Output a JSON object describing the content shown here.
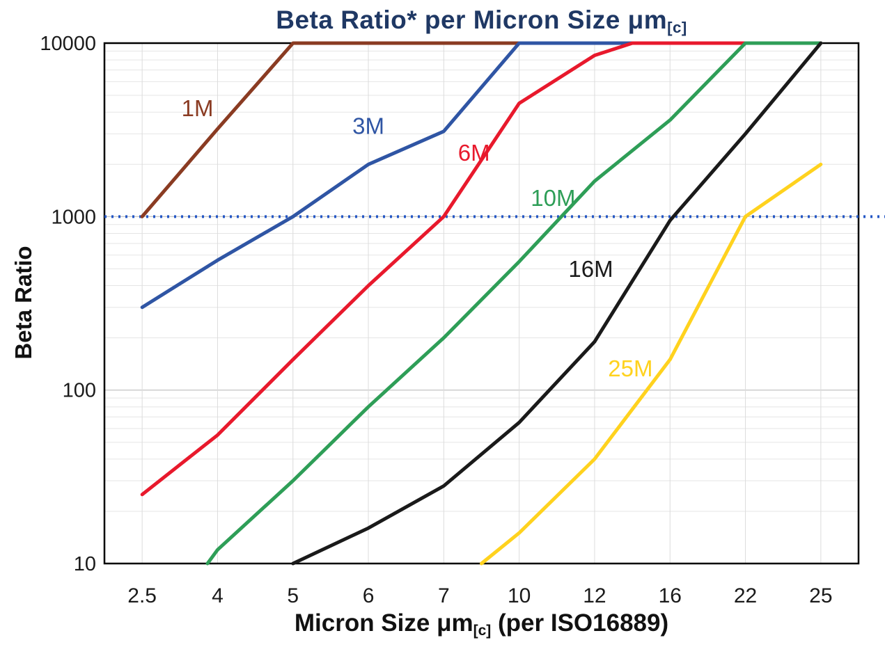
{
  "title": {
    "prefix": "Beta Ratio* per Micron Size μm",
    "sub": "[c]"
  },
  "ylabel": {
    "text": "Beta Ratio"
  },
  "xlabel": {
    "part1": "Micron Size μm",
    "sub": "[c]",
    "part2": " (per ISO16889)"
  },
  "colors": {
    "title_text": "#1f3864",
    "axis_text": "#1a1a1a",
    "reference_line": "#2457c5",
    "plot_border": "#000000",
    "grid_minor": "#e5e5e5",
    "grid_major": "#c9c9c9",
    "grid_vertical": "#dcdcdc"
  },
  "chart_data": {
    "type": "line",
    "title": "Beta Ratio* per Micron Size μm[c]",
    "xlabel": "Micron Size μm[c] (per ISO16889)",
    "ylabel": "Beta Ratio",
    "x_scale": "categorical",
    "y_scale": "log10",
    "ylim": [
      10,
      10000
    ],
    "y_ticks": [
      10,
      100,
      1000,
      10000
    ],
    "categories": [
      2.5,
      4,
      5,
      6,
      7,
      10,
      12,
      16,
      22,
      25
    ],
    "grid": true,
    "legend": "inline-labels",
    "reference_line": {
      "y": 1000,
      "style": "dotted",
      "color": "#2457c5"
    },
    "series": [
      {
        "name": "1M",
        "color": "#8a3b22",
        "points": [
          [
            2.5,
            1000
          ],
          [
            4,
            3200
          ],
          [
            5,
            10000
          ],
          [
            10,
            10000
          ]
        ],
        "label_pos": {
          "x": 3.6,
          "y": 3800
        }
      },
      {
        "name": "3M",
        "color": "#2f55a4",
        "points": [
          [
            2.5,
            300
          ],
          [
            4,
            560
          ],
          [
            5,
            1000
          ],
          [
            6,
            2000
          ],
          [
            7,
            3100
          ],
          [
            10,
            10000
          ],
          [
            25,
            10000
          ]
        ],
        "label_pos": {
          "x": 6.0,
          "y": 3000
        }
      },
      {
        "name": "6M",
        "color": "#e8192c",
        "points": [
          [
            2.5,
            25
          ],
          [
            4,
            55
          ],
          [
            5,
            150
          ],
          [
            6,
            400
          ],
          [
            7,
            1000
          ],
          [
            10,
            4500
          ],
          [
            12,
            8500
          ],
          [
            14,
            10000
          ],
          [
            25,
            10000
          ]
        ],
        "label_pos": {
          "x": 8.2,
          "y": 2100
        }
      },
      {
        "name": "10M",
        "color": "#2e9e57",
        "points": [
          [
            3.8,
            10
          ],
          [
            4,
            12
          ],
          [
            5,
            30
          ],
          [
            6,
            80
          ],
          [
            7,
            200
          ],
          [
            10,
            550
          ],
          [
            12,
            1600
          ],
          [
            16,
            3600
          ],
          [
            22,
            10000
          ],
          [
            25,
            10000
          ]
        ],
        "label_pos": {
          "x": 10.9,
          "y": 1150
        }
      },
      {
        "name": "16M",
        "color": "#1a1a1a",
        "points": [
          [
            5,
            10
          ],
          [
            6,
            16
          ],
          [
            7,
            28
          ],
          [
            10,
            65
          ],
          [
            12,
            190
          ],
          [
            16,
            950
          ],
          [
            22,
            3000
          ],
          [
            25,
            10000
          ]
        ],
        "label_pos": {
          "x": 11.9,
          "y": 450
        }
      },
      {
        "name": "25M",
        "color": "#ffd21e",
        "points": [
          [
            8.5,
            10
          ],
          [
            10,
            15
          ],
          [
            12,
            40
          ],
          [
            16,
            150
          ],
          [
            22,
            1000
          ],
          [
            25,
            2000
          ]
        ],
        "label_pos": {
          "x": 13.9,
          "y": 120
        }
      }
    ]
  }
}
